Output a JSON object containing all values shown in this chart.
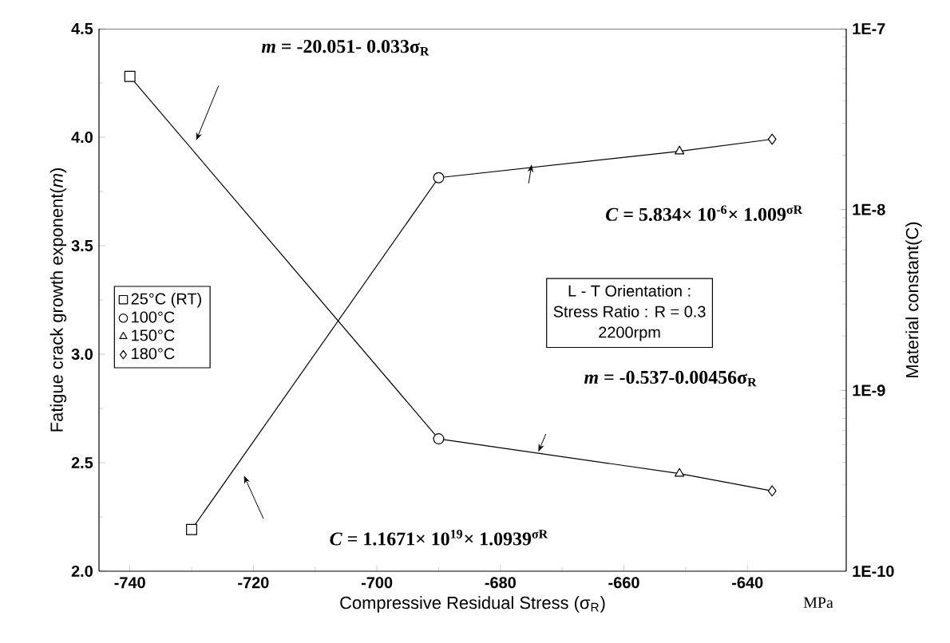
{
  "chart_data": {
    "type": "line",
    "xlabel": "Compressive Residual Stress (σ$_{R}$)",
    "ylabel": "Fatigue crack growth exponent(*m*)",
    "y2label": "Material constant(C)",
    "xlim": [
      -745,
      -624
    ],
    "xticks": [
      -740,
      -720,
      -700,
      -680,
      -660,
      -640
    ],
    "ylim": [
      2,
      4.5
    ],
    "yticks": [
      {
        "value": 2,
        "label": "2.0"
      },
      {
        "value": 2.5,
        "label": "2.5"
      },
      {
        "value": 3,
        "label": "3.0"
      },
      {
        "value": 3.5,
        "label": "3.5"
      },
      {
        "value": 4,
        "label": "4.0"
      },
      {
        "value": 4.5,
        "label": "4.5"
      }
    ],
    "y2lim": [
      1e-10,
      1e-07
    ],
    "y2ticks": [
      {
        "value": 1e-10,
        "label": "1E-10"
      },
      {
        "value": 1e-09,
        "label": "1E-9"
      },
      {
        "value": 1e-08,
        "label": "1E-8"
      },
      {
        "value": 1e-07,
        "label": "1E-7"
      }
    ],
    "log": "y2",
    "legend": "left",
    "grid": false,
    "series": [
      {
        "type": "line",
        "marker": "none",
        "color": "#000000",
        "x": [
          -740,
          -690,
          -651,
          -636
        ],
        "values": [
          4.28,
          2.61,
          2.45,
          2.37
        ]
      },
      {
        "type": "line",
        "axis": "y2",
        "marker": "none",
        "color": "#000000",
        "x": [
          -730,
          -690,
          -651,
          -636
        ],
        "values": [
          1.7e-10,
          1.5e-08,
          2.1e-08,
          2.45e-08
        ]
      },
      {
        "name": "25°C (RT)",
        "type": "scatter",
        "marker": "square",
        "color": "#000000",
        "x": [
          -740
        ],
        "values": [
          4.28
        ]
      },
      {
        "name": "100°C",
        "type": "scatter",
        "marker": "circle",
        "color": "#000000",
        "x": [
          -690
        ],
        "values": [
          2.61
        ]
      },
      {
        "name": "150°C",
        "type": "scatter",
        "marker": "triangle",
        "color": "#000000",
        "x": [
          -651
        ],
        "values": [
          2.45
        ]
      },
      {
        "name": "180°C",
        "type": "scatter",
        "marker": "diamond",
        "color": "#000000",
        "x": [
          -636
        ],
        "values": [
          2.37
        ]
      },
      {
        "type": "scatter",
        "axis": "y2",
        "marker": "square",
        "color": "#000000",
        "x": [
          -730
        ],
        "values": [
          1.7e-10
        ]
      },
      {
        "type": "scatter",
        "axis": "y2",
        "marker": "circle",
        "color": "#000000",
        "x": [
          -690
        ],
        "values": [
          1.5e-08
        ]
      },
      {
        "type": "scatter",
        "axis": "y2",
        "marker": "triangle",
        "color": "#000000",
        "x": [
          -651
        ],
        "values": [
          2.1e-08
        ]
      },
      {
        "type": "scatter",
        "axis": "y2",
        "marker": "diamond",
        "color": "#000000",
        "x": [
          -636
        ],
        "values": [
          2.45e-08
        ]
      }
    ],
    "annotations": [
      "*m* = -20.051- 0.033σ$_{R}$",
      "*C* = 5.834× 10$^{-6}$× 1.009$^{σR}$",
      "*m* = -0.537-0.00456σ$_{R}$",
      "*C* = 1.1671× 10$^{19}$× 1.0939$^{σR}$",
      "L - T Orientation :",
      "Stress Ratio : R = 0.3",
      "2200rpm",
      "MPa"
    ]
  }
}
